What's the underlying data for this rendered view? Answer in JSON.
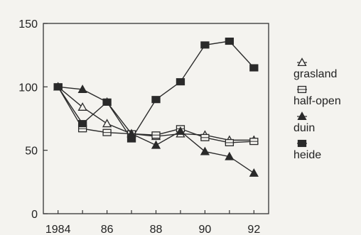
{
  "chart_data": {
    "type": "line",
    "title": "",
    "xlabel": "",
    "ylabel": "",
    "x": [
      1984,
      1985,
      1986,
      1987,
      1988,
      1989,
      1990,
      1991,
      1992
    ],
    "x_tick_values": [
      1984,
      1986,
      1988,
      1990,
      1992
    ],
    "x_tick_labels": [
      "1984",
      "86",
      "88",
      "90",
      "92"
    ],
    "xlim": [
      1983.4,
      1992.6
    ],
    "ylim": [
      0,
      150
    ],
    "y_ticks": [
      0,
      50,
      100,
      150
    ],
    "grid": false,
    "legend_position": "right",
    "series": [
      {
        "name": "grasland",
        "marker": "triangle-open",
        "values": [
          100,
          84,
          71,
          63,
          61,
          63,
          62,
          58,
          58
        ]
      },
      {
        "name": "half-open",
        "marker": "square-open",
        "values": [
          100,
          67,
          64,
          63,
          62,
          67,
          60,
          56,
          57
        ]
      },
      {
        "name": "duin",
        "marker": "triangle-filled",
        "values": [
          100,
          98,
          88,
          63,
          54,
          65,
          49,
          45,
          32
        ]
      },
      {
        "name": "heide",
        "marker": "square-filled",
        "values": [
          100,
          71,
          88,
          59,
          90,
          104,
          133,
          136,
          115
        ]
      }
    ]
  }
}
